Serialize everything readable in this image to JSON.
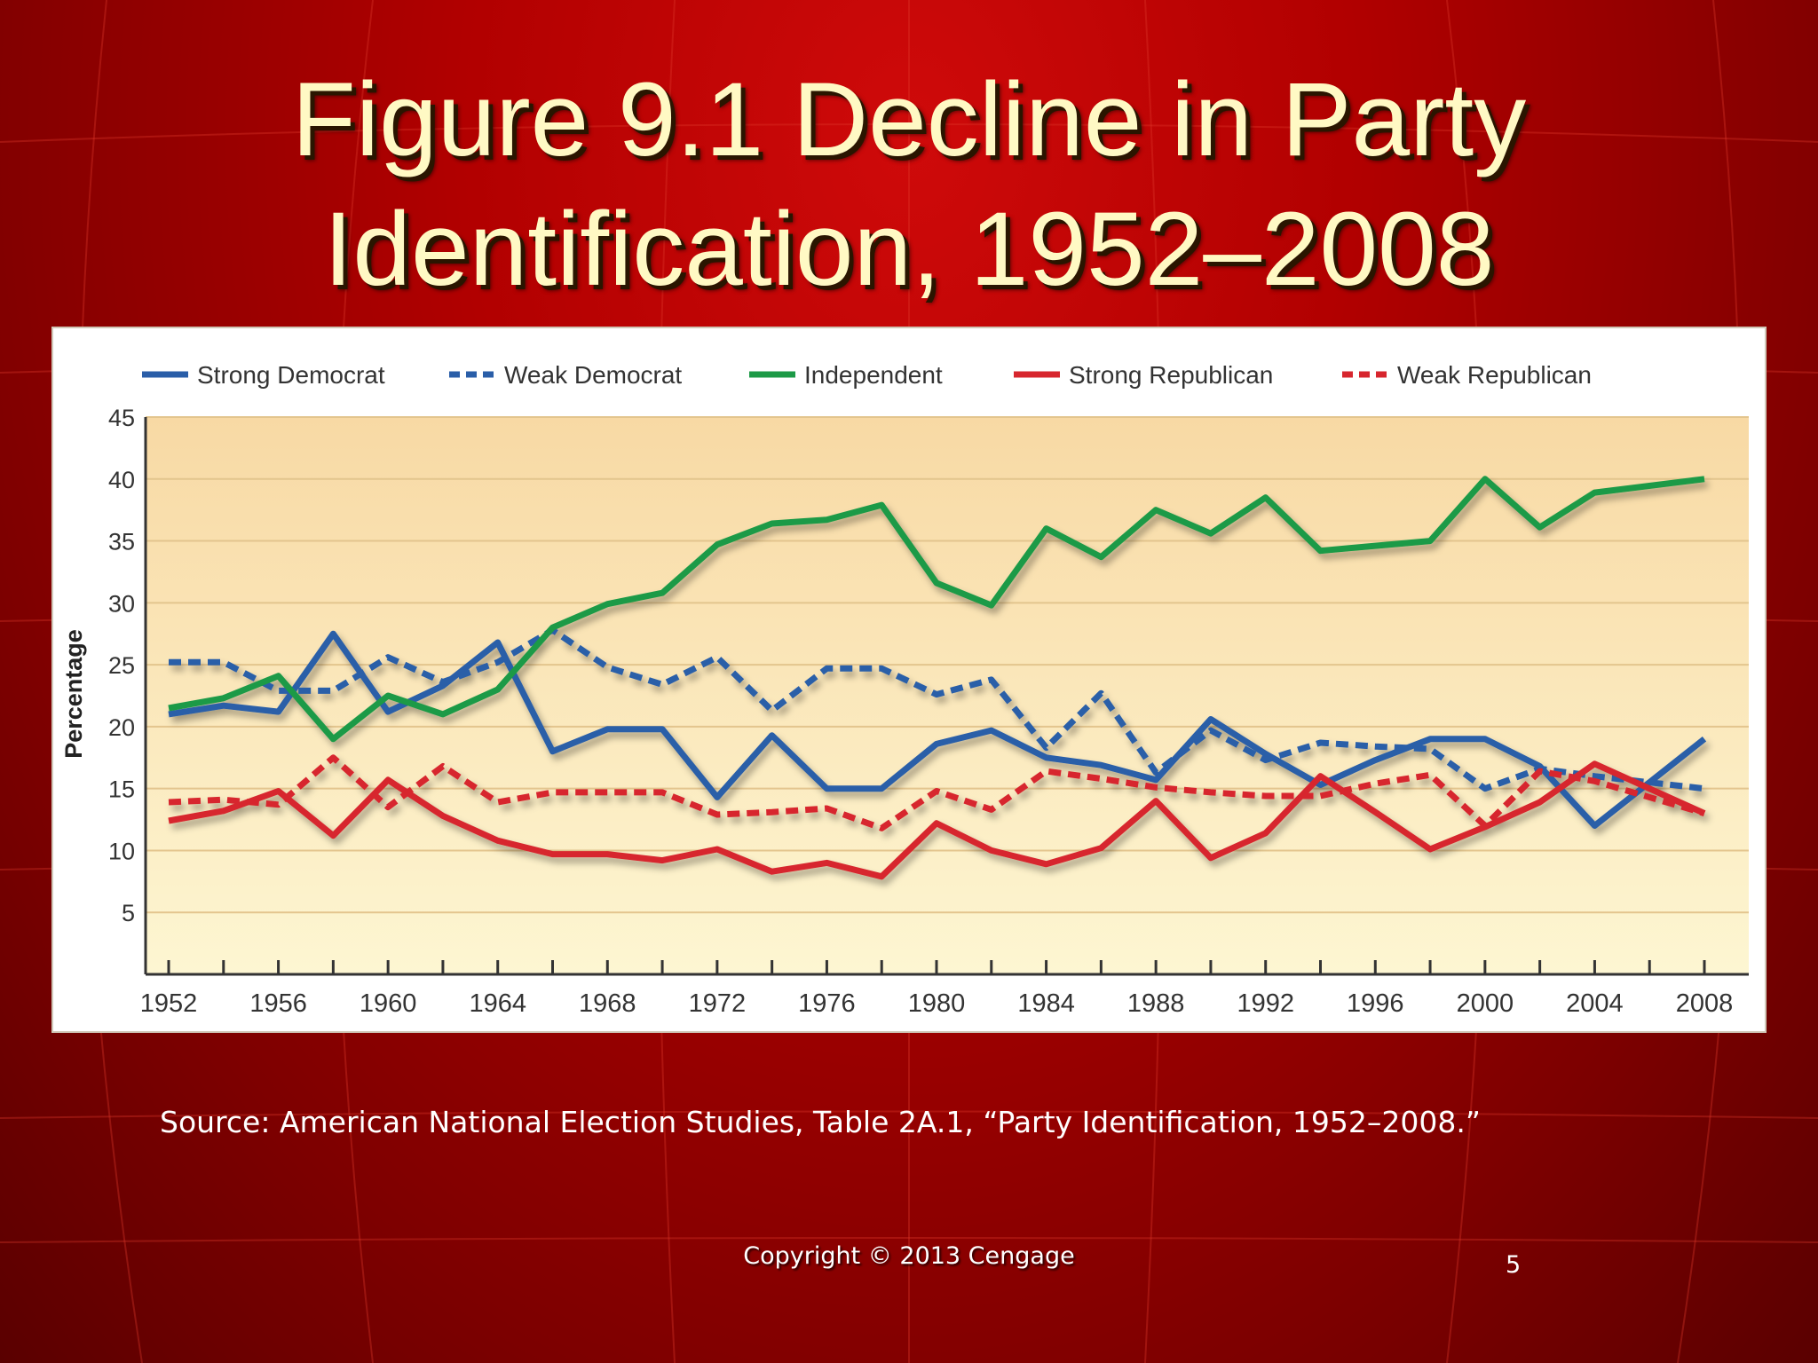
{
  "slide": {
    "title_line1": "Figure 9.1  Decline in Party",
    "title_line2": "Identification, 1952–2008",
    "source": "Source: American National Election Studies, Table 2A.1, “Party Identification, 1952–2008.”",
    "copyright": "Copyright © 2013 Cengage",
    "page_number": "5"
  },
  "chart_data": {
    "type": "line",
    "title": "",
    "xlabel": "",
    "ylabel": "Percentage",
    "ylim": [
      0,
      45
    ],
    "yticks": [
      5,
      10,
      15,
      20,
      25,
      30,
      35,
      40,
      45
    ],
    "xticks": [
      1952,
      1956,
      1960,
      1964,
      1968,
      1972,
      1976,
      1980,
      1984,
      1988,
      1992,
      1996,
      2000,
      2004,
      2008
    ],
    "x": [
      1952,
      1954,
      1956,
      1958,
      1960,
      1962,
      1964,
      1966,
      1968,
      1970,
      1972,
      1974,
      1976,
      1978,
      1980,
      1982,
      1984,
      1986,
      1988,
      1990,
      1992,
      1994,
      1996,
      1998,
      2000,
      2002,
      2004,
      2008
    ],
    "series": [
      {
        "name": "Strong Democrat",
        "color": "#2a5ea8",
        "dash": "solid",
        "values": [
          21,
          21.7,
          21.2,
          27.5,
          21.2,
          23.3,
          26.8,
          18,
          19.8,
          19.8,
          14.3,
          19.3,
          15,
          15,
          18.6,
          19.7,
          17.5,
          16.9,
          15.7,
          20.6,
          17.8,
          15.3,
          17.3,
          19,
          19,
          16.8,
          12,
          19
        ]
      },
      {
        "name": "Weak Democrat",
        "color": "#2a5ea8",
        "dash": "dashed",
        "values": [
          25.2,
          25.2,
          22.9,
          22.9,
          25.6,
          23.6,
          25.2,
          27.8,
          24.8,
          23.4,
          25.6,
          21.3,
          24.7,
          24.7,
          22.6,
          23.8,
          18.3,
          22.7,
          16.3,
          19.7,
          17.3,
          18.7,
          18.4,
          18.2,
          15,
          16.6,
          16,
          15
        ]
      },
      {
        "name": "Independent",
        "color": "#1d9a47",
        "dash": "solid",
        "values": [
          21.5,
          22.3,
          24.1,
          19,
          22.5,
          21,
          23,
          28,
          29.9,
          30.8,
          34.7,
          36.4,
          36.7,
          37.9,
          31.6,
          29.8,
          36,
          33.7,
          37.5,
          35.6,
          38.5,
          34.2,
          34.6,
          35,
          40,
          36.1,
          38.9,
          40
        ]
      },
      {
        "name": "Strong Republican",
        "color": "#d7262e",
        "dash": "solid",
        "values": [
          12.4,
          13.2,
          14.8,
          11.2,
          15.7,
          12.8,
          10.8,
          9.7,
          9.7,
          9.2,
          10.1,
          8.3,
          9,
          7.9,
          12.2,
          10,
          8.9,
          10.2,
          14,
          9.4,
          11.4,
          16,
          13.1,
          10.1,
          11.9,
          13.9,
          17,
          13
        ]
      },
      {
        "name": "Weak Republican",
        "color": "#d7262e",
        "dash": "dashed",
        "values": [
          13.9,
          14.1,
          13.7,
          17.5,
          13.5,
          16.8,
          13.9,
          14.7,
          14.7,
          14.7,
          12.9,
          13.1,
          13.4,
          11.8,
          14.8,
          13.3,
          16.4,
          15.8,
          15.1,
          14.7,
          14.4,
          14.4,
          15.4,
          16.1,
          12,
          16.4,
          15.6,
          13
        ]
      }
    ]
  }
}
